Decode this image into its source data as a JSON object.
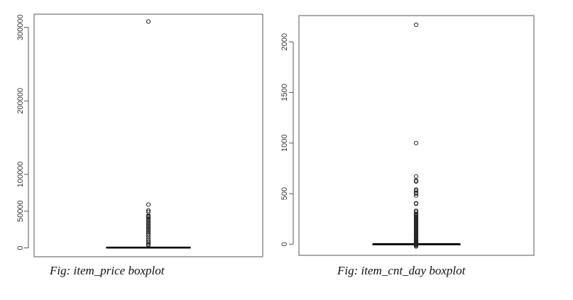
{
  "chart_data": [
    {
      "type": "box",
      "caption": "Fig: item_price boxplot",
      "ylim": [
        -12000,
        318000
      ],
      "yticks": [
        0,
        50000,
        100000,
        200000,
        300000
      ],
      "ytick_labels": [
        "0",
        "50000",
        "100000",
        "200000",
        "300000"
      ],
      "box": {
        "min": 0,
        "q1": 0,
        "median": 400,
        "q3": 1000,
        "max": 2500
      },
      "outliers": [
        3500,
        5000,
        7000,
        9000,
        12000,
        15000,
        18000,
        20000,
        22000,
        24000,
        26000,
        28000,
        30000,
        32000,
        34000,
        36000,
        38000,
        40000,
        42000,
        43000,
        44000,
        49000,
        51000,
        59000,
        307980
      ],
      "grid": false
    },
    {
      "type": "box",
      "caption": "Fig: item_cnt_day boxplot",
      "ylim": [
        -110,
        2260
      ],
      "yticks": [
        0,
        500,
        1000,
        1500,
        2000
      ],
      "ytick_labels": [
        "0",
        "500",
        "1000",
        "1500",
        "2000"
      ],
      "box": {
        "min": -22,
        "q1": 1,
        "median": 1,
        "q3": 1,
        "max": 1
      },
      "outliers": [
        -22,
        -16,
        -6,
        -4,
        2,
        5,
        10,
        15,
        20,
        30,
        40,
        50,
        60,
        70,
        80,
        90,
        100,
        110,
        120,
        130,
        140,
        150,
        160,
        170,
        180,
        190,
        200,
        210,
        220,
        230,
        240,
        250,
        260,
        270,
        280,
        290,
        300,
        320,
        330,
        400,
        405,
        480,
        500,
        510,
        530,
        540,
        620,
        630,
        670,
        1000,
        2169
      ],
      "grid": false
    }
  ]
}
